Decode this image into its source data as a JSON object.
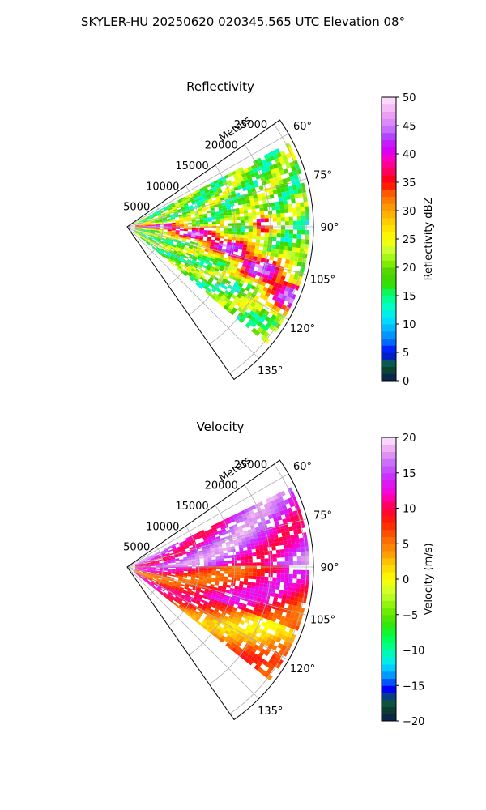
{
  "figure": {
    "title": "SKYLER-HU  20250620  020345.565 UTC Elevation 08°"
  },
  "chart_data": [
    {
      "type": "heatmap",
      "projection": "polar-sector",
      "title": "Reflectivity",
      "range_label": "Meters",
      "range_ticks": [
        "5000",
        "10000",
        "15000",
        "20000",
        "25000"
      ],
      "range_tick_values": [
        5000,
        10000,
        15000,
        20000,
        25000
      ],
      "rmax": 26000,
      "azimuth_range": [
        55,
        145
      ],
      "azimuth_ticks": [
        "60°",
        "75°",
        "90°",
        "105°",
        "120°",
        "135°"
      ],
      "azimuth_tick_values": [
        60,
        75,
        90,
        105,
        120,
        135
      ],
      "grid": true,
      "colorbar": {
        "label": "Reflectivity dBZ",
        "ticks": [
          "0",
          "5",
          "10",
          "15",
          "20",
          "25",
          "30",
          "35",
          "40",
          "45",
          "50"
        ],
        "tick_values": [
          0,
          5,
          10,
          15,
          20,
          25,
          30,
          35,
          40,
          45,
          50
        ],
        "vmin": 0,
        "vmax": 50,
        "stops": [
          {
            "v": 0,
            "c": "#0a1a5a"
          },
          {
            "v": 1.5,
            "c": "#0d3b2e"
          },
          {
            "v": 3,
            "c": "#0a5f46"
          },
          {
            "v": 5,
            "c": "#0000ff"
          },
          {
            "v": 7,
            "c": "#0070ff"
          },
          {
            "v": 9,
            "c": "#00b0ff"
          },
          {
            "v": 11,
            "c": "#00e5ff"
          },
          {
            "v": 13,
            "c": "#00ffc8"
          },
          {
            "v": 15,
            "c": "#00ff80"
          },
          {
            "v": 17,
            "c": "#32e000"
          },
          {
            "v": 19,
            "c": "#4cd000"
          },
          {
            "v": 21,
            "c": "#8cf000"
          },
          {
            "v": 23,
            "c": "#c8ff30"
          },
          {
            "v": 25,
            "c": "#ffff00"
          },
          {
            "v": 28,
            "c": "#ffd000"
          },
          {
            "v": 31,
            "c": "#ff9000"
          },
          {
            "v": 33,
            "c": "#ff6000"
          },
          {
            "v": 35,
            "c": "#ff0000"
          },
          {
            "v": 37,
            "c": "#ff0060"
          },
          {
            "v": 39,
            "c": "#ff00c0"
          },
          {
            "v": 41,
            "c": "#d000ff"
          },
          {
            "v": 43,
            "c": "#b040ff"
          },
          {
            "v": 45,
            "c": "#d080ff"
          },
          {
            "v": 47,
            "c": "#f0a0f0"
          },
          {
            "v": 50,
            "c": "#ffe8ff"
          }
        ]
      }
    },
    {
      "type": "heatmap",
      "projection": "polar-sector",
      "title": "Velocity",
      "range_label": "Meters",
      "range_ticks": [
        "5000",
        "10000",
        "15000",
        "20000",
        "25000"
      ],
      "range_tick_values": [
        5000,
        10000,
        15000,
        20000,
        25000
      ],
      "rmax": 26000,
      "azimuth_range": [
        55,
        145
      ],
      "azimuth_ticks": [
        "60°",
        "75°",
        "90°",
        "105°",
        "120°",
        "135°"
      ],
      "azimuth_tick_values": [
        60,
        75,
        90,
        105,
        120,
        135
      ],
      "grid": true,
      "colorbar": {
        "label": "Velocity (m/s)",
        "ticks": [
          "−20",
          "−15",
          "−10",
          "−5",
          "0",
          "5",
          "10",
          "15",
          "20"
        ],
        "tick_values": [
          -20,
          -15,
          -10,
          -5,
          0,
          5,
          10,
          15,
          20
        ],
        "vmin": -20,
        "vmax": 20,
        "stops": [
          {
            "v": -20,
            "c": "#0a1a5a"
          },
          {
            "v": -18.5,
            "c": "#0d3b2e"
          },
          {
            "v": -17,
            "c": "#0a5f46"
          },
          {
            "v": -15.5,
            "c": "#0000ff"
          },
          {
            "v": -14,
            "c": "#0080ff"
          },
          {
            "v": -12,
            "c": "#00e5ff"
          },
          {
            "v": -10,
            "c": "#00ffa0"
          },
          {
            "v": -8,
            "c": "#00ff40"
          },
          {
            "v": -6,
            "c": "#40e000"
          },
          {
            "v": -4,
            "c": "#80f000"
          },
          {
            "v": -2,
            "c": "#c8ff30"
          },
          {
            "v": 0,
            "c": "#ffff00"
          },
          {
            "v": 2,
            "c": "#ffd000"
          },
          {
            "v": 4,
            "c": "#ff9000"
          },
          {
            "v": 6,
            "c": "#ff6000"
          },
          {
            "v": 8,
            "c": "#ff2000"
          },
          {
            "v": 10,
            "c": "#ff0040"
          },
          {
            "v": 12,
            "c": "#ff00d0"
          },
          {
            "v": 14,
            "c": "#d020ff"
          },
          {
            "v": 16,
            "c": "#c060ff"
          },
          {
            "v": 18,
            "c": "#e8a0f0"
          },
          {
            "v": 20,
            "c": "#ffe8ff"
          }
        ]
      }
    }
  ]
}
